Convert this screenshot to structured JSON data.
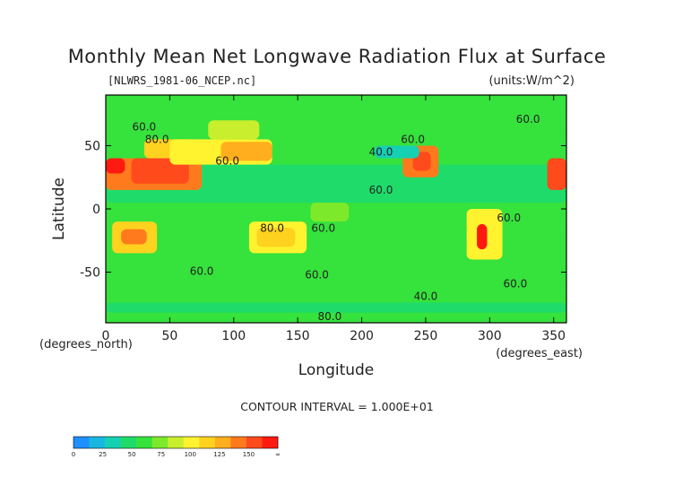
{
  "chart_data": {
    "type": "heatmap",
    "title": "Monthly Mean Net Longwave Radiation Flux at Surface",
    "file_label": "[NLWRS_1981-06_NCEP.nc]",
    "units_label": "(units:W/m^2)",
    "xlabel": "Longitude",
    "xunit_label": "(degrees_east)",
    "ylabel": "Latitude",
    "yunit_label": "(degrees_north)",
    "xlim": [
      0,
      360
    ],
    "ylim": [
      -90,
      90
    ],
    "x_ticks": [
      0,
      50,
      100,
      150,
      200,
      250,
      300,
      350
    ],
    "y_ticks": [
      -50,
      0,
      50
    ],
    "contour_interval_text": "CONTOUR INTERVAL = 1.000E+01",
    "contour_labels": [
      {
        "lon": 30,
        "lat": 62,
        "text": "60.0"
      },
      {
        "lon": 40,
        "lat": 52,
        "text": "80.0"
      },
      {
        "lon": 95,
        "lat": 35,
        "text": "60.0"
      },
      {
        "lon": 215,
        "lat": 42,
        "text": "40.0"
      },
      {
        "lon": 240,
        "lat": 52,
        "text": "60.0"
      },
      {
        "lon": 215,
        "lat": 12,
        "text": "60.0"
      },
      {
        "lon": 130,
        "lat": -18,
        "text": "80.0"
      },
      {
        "lon": 170,
        "lat": -18,
        "text": "60.0"
      },
      {
        "lon": 165,
        "lat": -55,
        "text": "60.0"
      },
      {
        "lon": 75,
        "lat": -52,
        "text": "60.0"
      },
      {
        "lon": 315,
        "lat": -10,
        "text": "60.0"
      },
      {
        "lon": 250,
        "lat": -72,
        "text": "40.0"
      },
      {
        "lon": 320,
        "lat": -62,
        "text": "60.0"
      },
      {
        "lon": 330,
        "lat": 68,
        "text": "60.0"
      },
      {
        "lon": 175,
        "lat": -88,
        "text": "80.0"
      }
    ],
    "colorbar": {
      "colors": [
        "#1e90ff",
        "#19b7e0",
        "#16d0b4",
        "#1fdc6a",
        "#36e23c",
        "#7cea2a",
        "#c8ee2e",
        "#fff22f",
        "#ffd21f",
        "#ffae1d",
        "#ff7a1c",
        "#ff4a1c",
        "#ff1a10"
      ],
      "tick_labels": [
        "0",
        "25",
        "50",
        "75",
        "100",
        "125",
        "150",
        "∞"
      ]
    },
    "base_value": 60,
    "regions": [
      {
        "lon": 0,
        "lat": 75,
        "wlon": 360,
        "hlat": 15,
        "value": 60
      },
      {
        "lon": 0,
        "lat": 60,
        "wlon": 360,
        "hlat": 15,
        "value": 50
      },
      {
        "lon": 0,
        "lat": 35,
        "wlon": 360,
        "hlat": 25,
        "value": 55
      },
      {
        "lon": 0,
        "lat": 5,
        "wlon": 360,
        "hlat": 30,
        "value": 45
      },
      {
        "lon": 0,
        "lat": -20,
        "wlon": 360,
        "hlat": 25,
        "value": 58
      },
      {
        "lon": 0,
        "lat": -60,
        "wlon": 360,
        "hlat": 40,
        "value": 62
      },
      {
        "lon": 0,
        "lat": -75,
        "wlon": 360,
        "hlat": 15,
        "value": 50
      },
      {
        "lon": 0,
        "lat": -90,
        "wlon": 360,
        "hlat": 15,
        "value": 62
      },
      {
        "lon": 0,
        "lat": 15,
        "wlon": 75,
        "hlat": 25,
        "value": 125
      },
      {
        "lon": 20,
        "lat": 20,
        "wlon": 45,
        "hlat": 20,
        "value": 145
      },
      {
        "lon": 0,
        "lat": 28,
        "wlon": 15,
        "hlat": 12,
        "value": 150
      },
      {
        "lon": 30,
        "lat": 40,
        "wlon": 40,
        "hlat": 15,
        "value": 100
      },
      {
        "lon": 50,
        "lat": 35,
        "wlon": 80,
        "hlat": 20,
        "value": 90
      },
      {
        "lon": 90,
        "lat": 38,
        "wlon": 40,
        "hlat": 15,
        "value": 115
      },
      {
        "lon": 80,
        "lat": 55,
        "wlon": 40,
        "hlat": 15,
        "value": 85
      },
      {
        "lon": 232,
        "lat": 25,
        "wlon": 28,
        "hlat": 25,
        "value": 125
      },
      {
        "lon": 240,
        "lat": 30,
        "wlon": 14,
        "hlat": 15,
        "value": 145
      },
      {
        "lon": 345,
        "lat": 15,
        "wlon": 15,
        "hlat": 25,
        "value": 140
      },
      {
        "lon": 5,
        "lat": -35,
        "wlon": 35,
        "hlat": 25,
        "value": 105
      },
      {
        "lon": 12,
        "lat": -28,
        "wlon": 20,
        "hlat": 12,
        "value": 125
      },
      {
        "lon": 112,
        "lat": -35,
        "wlon": 45,
        "hlat": 25,
        "value": 95
      },
      {
        "lon": 118,
        "lat": -30,
        "wlon": 30,
        "hlat": 15,
        "value": 110
      },
      {
        "lon": 282,
        "lat": -40,
        "wlon": 28,
        "hlat": 40,
        "value": 95
      },
      {
        "lon": 290,
        "lat": -32,
        "wlon": 8,
        "hlat": 20,
        "value": 150
      },
      {
        "lon": 210,
        "lat": 40,
        "wlon": 35,
        "hlat": 10,
        "value": 30
      },
      {
        "lon": 160,
        "lat": -10,
        "wlon": 30,
        "hlat": 15,
        "value": 70
      },
      {
        "lon": 0,
        "lat": -82,
        "wlon": 360,
        "hlat": 8,
        "value": 40
      }
    ]
  }
}
